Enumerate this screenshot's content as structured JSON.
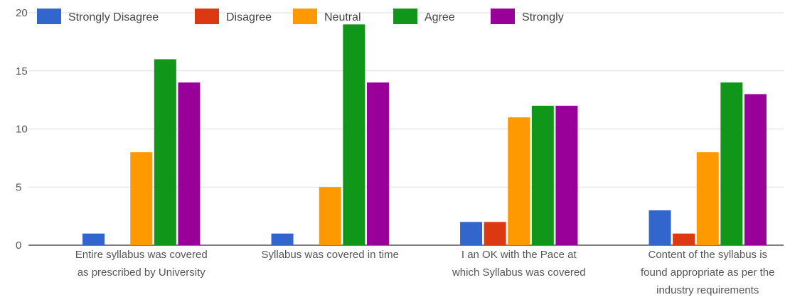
{
  "chart_data": {
    "type": "bar",
    "categories": [
      [
        "Entire syllabus was covered",
        "as prescribed by University"
      ],
      [
        "Syllabus was covered in time"
      ],
      [
        "I an OK with the Pace at",
        "which Syllabus was covered"
      ],
      [
        "Content of the syllabus is",
        "found appropriate as per the",
        "industry requirements"
      ]
    ],
    "series": [
      {
        "name": "Strongly Disagree",
        "color": "#3366cc",
        "values": [
          1,
          1,
          2,
          3
        ]
      },
      {
        "name": "Disagree",
        "color": "#dc3912",
        "values": [
          0,
          0,
          2,
          1
        ]
      },
      {
        "name": "Neutral",
        "color": "#ff9900",
        "values": [
          8,
          5,
          11,
          8
        ]
      },
      {
        "name": "Agree",
        "color": "#109618",
        "values": [
          16,
          19,
          12,
          14
        ]
      },
      {
        "name": "Strongly",
        "color": "#990099",
        "values": [
          14,
          14,
          12,
          13
        ]
      }
    ],
    "ylim": [
      0,
      20
    ],
    "yticks": [
      "0",
      "5",
      "10",
      "15",
      "20"
    ],
    "ytick_values": [
      0,
      5,
      10,
      15,
      20
    ],
    "legend_position": "top",
    "grid": true,
    "title": "",
    "xlabel": "",
    "ylabel": ""
  }
}
